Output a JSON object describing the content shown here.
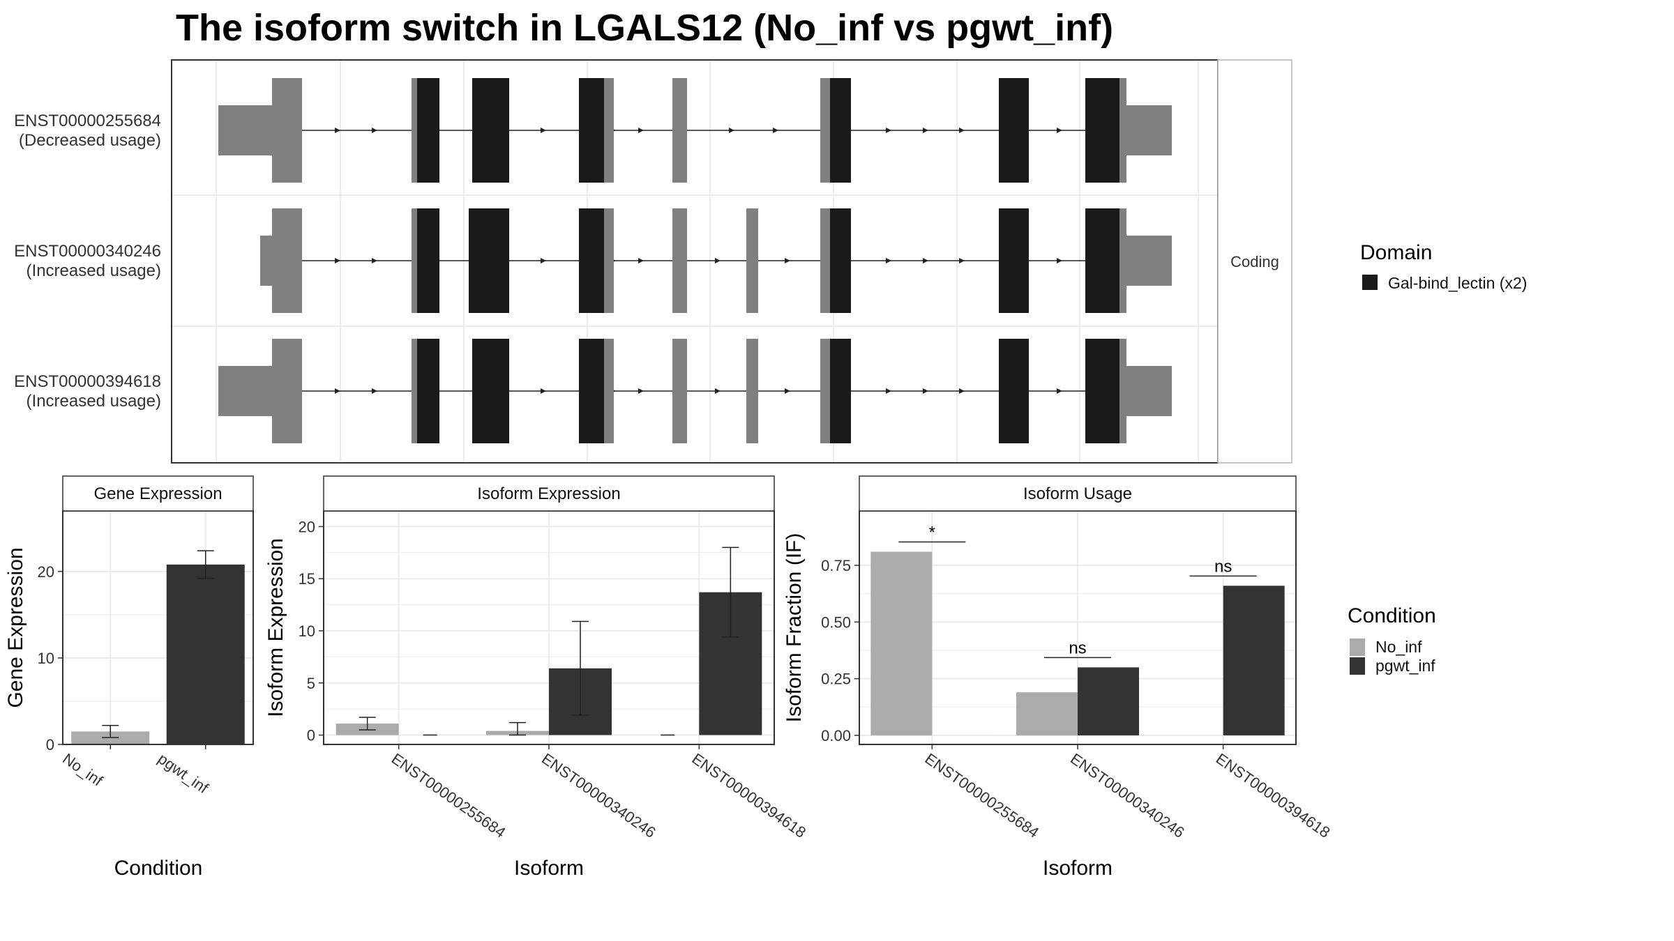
{
  "title": "The isoform switch in LGALS12 (No_inf vs pgwt_inf)",
  "strip_label": "Coding",
  "colors": {
    "domain": "#1a1a1a",
    "utr_exon": "#808080",
    "no_inf": "#ababab",
    "pgwt_inf": "#333333",
    "grid": "#ebebeb",
    "panel_border": "#333333",
    "strip_border": "#b3b3b3"
  },
  "transcripts": [
    {
      "id": "ENST00000255684",
      "note": "(Decreased usage)"
    },
    {
      "id": "ENST00000340246",
      "note": "(Increased usage)"
    },
    {
      "id": "ENST00000394618",
      "note": "(Increased usage)"
    }
  ],
  "legend_domain": {
    "title": "Domain",
    "items": [
      {
        "label": "Gal-bind_lectin (x2)",
        "color": "#1a1a1a"
      }
    ]
  },
  "legend_condition": {
    "title": "Condition",
    "items": [
      {
        "label": "No_inf",
        "color": "#ababab"
      },
      {
        "label": "pgwt_inf",
        "color": "#333333"
      }
    ]
  },
  "chart_data": [
    {
      "type": "bar",
      "panel": "Gene Expression",
      "categories": [
        "No_inf",
        "pgwt_inf"
      ],
      "series": [
        {
          "values": [
            1.5,
            20.8
          ],
          "error_low": [
            0.8,
            19.2
          ],
          "error_high": [
            2.2,
            22.4
          ]
        }
      ],
      "xlabel": "Condition",
      "ylabel": "Gene Expression",
      "ylim": [
        0,
        27
      ],
      "yticks": [
        0,
        10,
        20
      ],
      "grid": true
    },
    {
      "type": "bar",
      "panel": "Isoform Expression",
      "categories": [
        "ENST00000255684",
        "ENST00000340246",
        "ENST00000394618"
      ],
      "series": [
        {
          "name": "No_inf",
          "values": [
            1.1,
            0.4,
            0.0
          ],
          "error_low": [
            0.5,
            0.0,
            0.0
          ],
          "error_high": [
            1.7,
            1.2,
            0.0
          ]
        },
        {
          "name": "pgwt_inf",
          "values": [
            0.0,
            6.4,
            13.7
          ],
          "error_low": [
            0.0,
            1.9,
            9.4
          ],
          "error_high": [
            0.0,
            10.9,
            18.0
          ]
        }
      ],
      "xlabel": "Isoform",
      "ylabel": "Isoform Expression",
      "ylim": [
        -0.9,
        21.5
      ],
      "yticks": [
        0,
        5,
        10,
        15,
        20
      ],
      "grid": true
    },
    {
      "type": "bar",
      "panel": "Isoform Usage",
      "categories": [
        "ENST00000255684",
        "ENST00000340246",
        "ENST00000394618"
      ],
      "series": [
        {
          "name": "No_inf",
          "values": [
            0.81,
            0.19,
            0.0
          ]
        },
        {
          "name": "pgwt_inf",
          "values": [
            0.0,
            0.3,
            0.66
          ]
        }
      ],
      "annotations": [
        "*",
        "ns",
        "ns"
      ],
      "xlabel": "Isoform",
      "ylabel": "Isoform Fraction (IF)",
      "ylim": [
        -0.04,
        0.99
      ],
      "yticks": [
        "0.00",
        "0.25",
        "0.50",
        "0.75"
      ],
      "grid": true
    }
  ]
}
